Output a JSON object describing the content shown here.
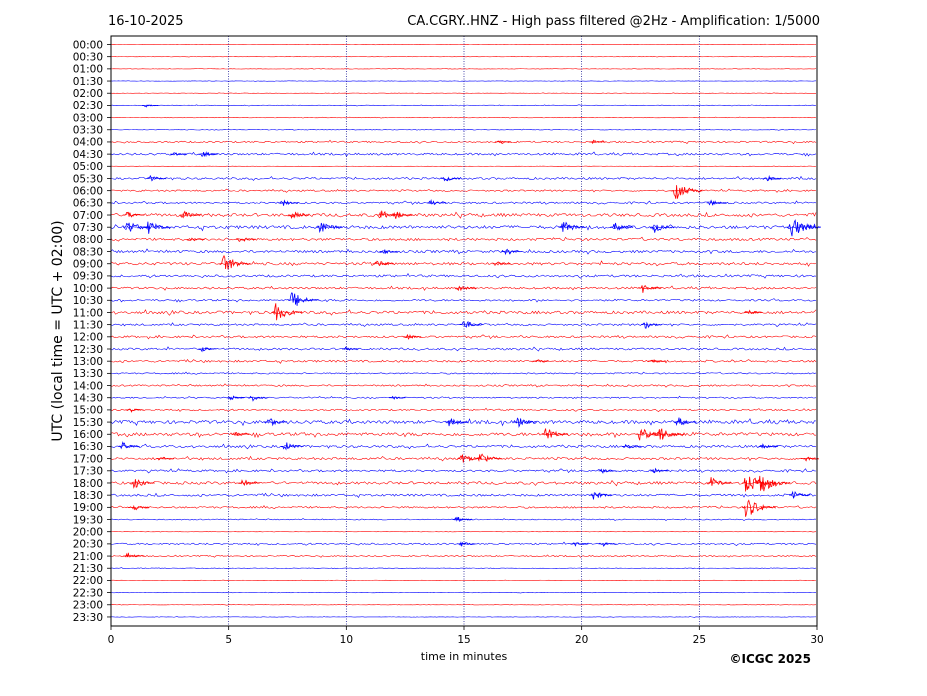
{
  "header": {
    "date": "16-10-2025",
    "title": "CA.CGRY..HNZ - High pass filtered @2Hz - Amplification: 1/5000"
  },
  "footer": {
    "copyright": "©ICGC 2025"
  },
  "colors": {
    "red_trace": "#ff0000",
    "blue_trace": "#0000ff",
    "grid": "#00008b",
    "frame": "#000000"
  },
  "chart_data": {
    "type": "line",
    "subtype": "helicorder",
    "xlabel": "time in minutes",
    "ylabel": "UTC (local time = UTC + 02:00)",
    "xlim": [
      0,
      30
    ],
    "x_ticks": [
      "0",
      "5",
      "10",
      "15",
      "20",
      "25",
      "30"
    ],
    "vertical_gridlines_minutes": [
      5,
      10,
      15,
      20,
      25
    ],
    "grid": "dotted vertical",
    "row_labels": [
      "00:00",
      "00:30",
      "01:00",
      "01:30",
      "02:00",
      "02:30",
      "03:00",
      "03:30",
      "04:00",
      "04:30",
      "05:00",
      "05:30",
      "06:00",
      "06:30",
      "07:00",
      "07:30",
      "08:00",
      "08:30",
      "09:00",
      "09:30",
      "10:00",
      "10:30",
      "11:00",
      "11:30",
      "12:00",
      "12:30",
      "13:00",
      "13:30",
      "14:00",
      "14:30",
      "15:00",
      "15:30",
      "16:00",
      "16:30",
      "17:00",
      "17:30",
      "18:00",
      "18:30",
      "19:00",
      "19:30",
      "20:00",
      "20:30",
      "21:00",
      "21:30",
      "22:00",
      "22:30",
      "23:00",
      "23:30"
    ],
    "row_colors": [
      "red",
      "red",
      "red",
      "blue",
      "red",
      "blue",
      "red",
      "blue",
      "red",
      "blue",
      "red",
      "blue",
      "red",
      "blue",
      "red",
      "blue",
      "red",
      "blue",
      "red",
      "blue",
      "red",
      "blue",
      "red",
      "blue",
      "red",
      "blue",
      "red",
      "blue",
      "red",
      "blue",
      "red",
      "blue",
      "red",
      "blue",
      "red",
      "blue",
      "red",
      "blue",
      "red",
      "blue",
      "red",
      "blue",
      "red",
      "blue",
      "red",
      "blue",
      "red",
      "blue"
    ],
    "row_noise": [
      0.2,
      0.2,
      0.2,
      0.2,
      0.2,
      0.3,
      0.3,
      0.3,
      0.8,
      1.0,
      0.2,
      1.0,
      0.8,
      0.9,
      1.5,
      1.6,
      1.2,
      1.2,
      1.3,
      1.1,
      1.0,
      0.9,
      1.4,
      0.9,
      1.0,
      1.0,
      1.0,
      0.7,
      0.8,
      0.7,
      0.8,
      1.6,
      1.6,
      1.2,
      1.1,
      1.0,
      1.3,
      1.1,
      0.9,
      0.5,
      0.2,
      0.8,
      0.6,
      0.3,
      0.2,
      0.2,
      0.2,
      0.2
    ],
    "events": [
      {
        "row": "02:30",
        "minute": 1.4,
        "amplitude": 3
      },
      {
        "row": "04:00",
        "minute": 16.4,
        "amplitude": 3
      },
      {
        "row": "04:00",
        "minute": 20.4,
        "amplitude": 3
      },
      {
        "row": "04:30",
        "minute": 2.6,
        "amplitude": 3
      },
      {
        "row": "04:30",
        "minute": 3.8,
        "amplitude": 5
      },
      {
        "row": "05:30",
        "minute": 1.6,
        "amplitude": 5
      },
      {
        "row": "05:30",
        "minute": 14.1,
        "amplitude": 5
      },
      {
        "row": "05:30",
        "minute": 27.8,
        "amplitude": 4
      },
      {
        "row": "06:00",
        "minute": 23.9,
        "amplitude": 12
      },
      {
        "row": "06:30",
        "minute": 7.2,
        "amplitude": 5
      },
      {
        "row": "06:30",
        "minute": 13.5,
        "amplitude": 5
      },
      {
        "row": "06:30",
        "minute": 25.4,
        "amplitude": 5
      },
      {
        "row": "07:00",
        "minute": 0.6,
        "amplitude": 6
      },
      {
        "row": "07:00",
        "minute": 3.0,
        "amplitude": 6
      },
      {
        "row": "07:00",
        "minute": 7.6,
        "amplitude": 6
      },
      {
        "row": "07:00",
        "minute": 11.4,
        "amplitude": 7
      },
      {
        "row": "07:00",
        "minute": 12.0,
        "amplitude": 6
      },
      {
        "row": "07:30",
        "minute": 0.6,
        "amplitude": 10
      },
      {
        "row": "07:30",
        "minute": 1.5,
        "amplitude": 9
      },
      {
        "row": "07:30",
        "minute": 8.8,
        "amplitude": 9
      },
      {
        "row": "07:30",
        "minute": 19.1,
        "amplitude": 9
      },
      {
        "row": "07:30",
        "minute": 21.3,
        "amplitude": 7
      },
      {
        "row": "07:30",
        "minute": 23.0,
        "amplitude": 8
      },
      {
        "row": "07:30",
        "minute": 28.8,
        "amplitude": 14
      },
      {
        "row": "08:00",
        "minute": 3.3,
        "amplitude": 4
      },
      {
        "row": "08:00",
        "minute": 5.4,
        "amplitude": 5
      },
      {
        "row": "08:30",
        "minute": 11.5,
        "amplitude": 4
      },
      {
        "row": "08:30",
        "minute": 16.7,
        "amplitude": 5
      },
      {
        "row": "09:00",
        "minute": 4.7,
        "amplitude": 12
      },
      {
        "row": "09:00",
        "minute": 11.2,
        "amplitude": 6
      },
      {
        "row": "09:00",
        "minute": 16.3,
        "amplitude": 4
      },
      {
        "row": "10:00",
        "minute": 14.7,
        "amplitude": 6
      },
      {
        "row": "10:00",
        "minute": 22.5,
        "amplitude": 7
      },
      {
        "row": "10:30",
        "minute": 7.6,
        "amplitude": 12
      },
      {
        "row": "11:00",
        "minute": 6.9,
        "amplitude": 12
      },
      {
        "row": "11:00",
        "minute": 27.0,
        "amplitude": 4
      },
      {
        "row": "11:30",
        "minute": 14.9,
        "amplitude": 7
      },
      {
        "row": "11:30",
        "minute": 22.6,
        "amplitude": 6
      },
      {
        "row": "12:00",
        "minute": 12.5,
        "amplitude": 4
      },
      {
        "row": "12:30",
        "minute": 3.8,
        "amplitude": 4
      },
      {
        "row": "12:30",
        "minute": 9.9,
        "amplitude": 3
      },
      {
        "row": "13:00",
        "minute": 18.0,
        "amplitude": 3
      },
      {
        "row": "13:00",
        "minute": 22.9,
        "amplitude": 4
      },
      {
        "row": "14:30",
        "minute": 5.0,
        "amplitude": 4
      },
      {
        "row": "14:30",
        "minute": 5.9,
        "amplitude": 5
      },
      {
        "row": "14:30",
        "minute": 11.9,
        "amplitude": 3
      },
      {
        "row": "15:00",
        "minute": 0.7,
        "amplitude": 4
      },
      {
        "row": "15:30",
        "minute": 6.6,
        "amplitude": 7
      },
      {
        "row": "15:30",
        "minute": 14.3,
        "amplitude": 7
      },
      {
        "row": "15:30",
        "minute": 17.2,
        "amplitude": 7
      },
      {
        "row": "15:30",
        "minute": 24.0,
        "amplitude": 7
      },
      {
        "row": "16:00",
        "minute": 5.2,
        "amplitude": 4
      },
      {
        "row": "16:00",
        "minute": 18.4,
        "amplitude": 9
      },
      {
        "row": "16:00",
        "minute": 22.4,
        "amplitude": 10
      },
      {
        "row": "16:00",
        "minute": 23.2,
        "amplitude": 11
      },
      {
        "row": "16:30",
        "minute": 0.4,
        "amplitude": 6
      },
      {
        "row": "16:30",
        "minute": 7.3,
        "amplitude": 7
      },
      {
        "row": "16:30",
        "minute": 21.8,
        "amplitude": 5
      },
      {
        "row": "16:30",
        "minute": 27.6,
        "amplitude": 5
      },
      {
        "row": "17:00",
        "minute": 2.0,
        "amplitude": 4
      },
      {
        "row": "17:00",
        "minute": 14.8,
        "amplitude": 8
      },
      {
        "row": "17:00",
        "minute": 15.6,
        "amplitude": 9
      },
      {
        "row": "17:00",
        "minute": 29.4,
        "amplitude": 4
      },
      {
        "row": "17:30",
        "minute": 20.8,
        "amplitude": 4
      },
      {
        "row": "17:30",
        "minute": 23.0,
        "amplitude": 4
      },
      {
        "row": "18:00",
        "minute": 0.9,
        "amplitude": 8
      },
      {
        "row": "18:00",
        "minute": 5.5,
        "amplitude": 6
      },
      {
        "row": "18:00",
        "minute": 25.4,
        "amplitude": 8
      },
      {
        "row": "18:00",
        "minute": 26.9,
        "amplitude": 14
      },
      {
        "row": "18:00",
        "minute": 27.5,
        "amplitude": 14
      },
      {
        "row": "18:30",
        "minute": 20.4,
        "amplitude": 7
      },
      {
        "row": "18:30",
        "minute": 28.9,
        "amplitude": 6
      },
      {
        "row": "19:00",
        "minute": 0.8,
        "amplitude": 6
      },
      {
        "row": "19:00",
        "minute": 26.9,
        "amplitude": 14
      },
      {
        "row": "19:30",
        "minute": 14.6,
        "amplitude": 5
      },
      {
        "row": "20:30",
        "minute": 14.8,
        "amplitude": 4
      },
      {
        "row": "20:30",
        "minute": 19.6,
        "amplitude": 4
      },
      {
        "row": "20:30",
        "minute": 20.8,
        "amplitude": 4
      },
      {
        "row": "21:00",
        "minute": 0.6,
        "amplitude": 6
      }
    ]
  }
}
